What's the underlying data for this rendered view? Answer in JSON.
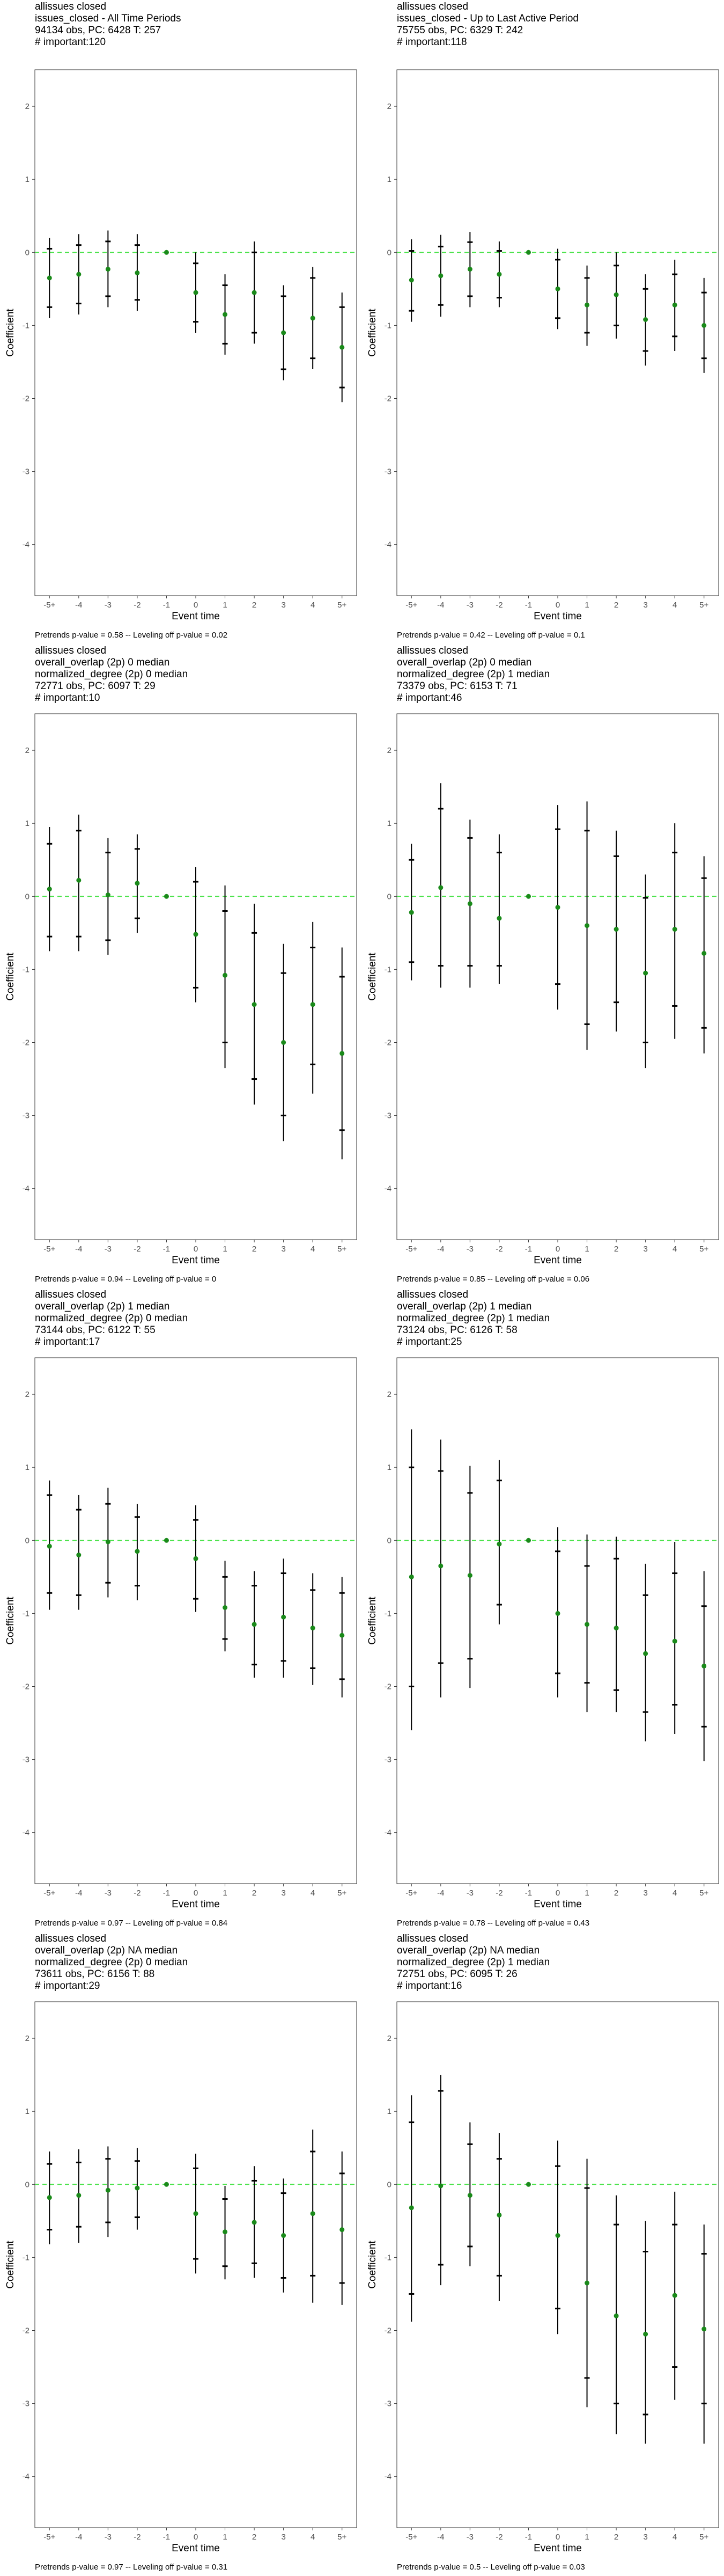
{
  "layout": {
    "columns": 2,
    "rows": 4
  },
  "styles": {
    "reference_line_color": "#4de34d",
    "point_color": "#1a8a1a",
    "ci_color": "#000000",
    "panel_border": "#333333"
  },
  "chart_data": [
    {
      "type": "scatter",
      "title_lines": [
        "allissues closed",
        "issues_closed - All Time Periods",
        "94134 obs, PC: 6428 T: 257",
        "# important:120"
      ],
      "xlabel": "Event time",
      "ylabel": "Coefficient",
      "categories": [
        "-5+",
        "-4",
        "-3",
        "-2",
        "-1",
        "0",
        "1",
        "2",
        "3",
        "4",
        "5+"
      ],
      "yticks": [
        2,
        1,
        0,
        -1,
        -2,
        -3,
        -4
      ],
      "ylim": [
        -4.7,
        2.5
      ],
      "reference_line_y": 0,
      "reference_category": "-1",
      "points": [
        -0.35,
        -0.3,
        -0.23,
        -0.28,
        0,
        -0.55,
        -0.85,
        -0.55,
        -1.1,
        -0.9,
        -1.3
      ],
      "ci_inner": [
        [
          -0.75,
          0.05
        ],
        [
          -0.7,
          0.1
        ],
        [
          -0.6,
          0.15
        ],
        [
          -0.65,
          0.1
        ],
        null,
        [
          -0.95,
          -0.15
        ],
        [
          -1.25,
          -0.45
        ],
        [
          -1.1,
          0.0
        ],
        [
          -1.6,
          -0.6
        ],
        [
          -1.45,
          -0.35
        ],
        [
          -1.85,
          -0.75
        ]
      ],
      "ci_outer": [
        [
          -0.9,
          0.2
        ],
        [
          -0.85,
          0.25
        ],
        [
          -0.75,
          0.3
        ],
        [
          -0.8,
          0.25
        ],
        null,
        [
          -1.1,
          0.0
        ],
        [
          -1.4,
          -0.3
        ],
        [
          -1.25,
          0.15
        ],
        [
          -1.75,
          -0.45
        ],
        [
          -1.6,
          -0.2
        ],
        [
          -2.05,
          -0.55
        ]
      ],
      "footer": "Pretrends p-value = 0.58 -- Leveling off p-value = 0.02"
    },
    {
      "type": "scatter",
      "title_lines": [
        "allissues closed",
        "issues_closed - Up to Last Active Period",
        "75755 obs, PC: 6329 T: 242",
        "# important:118"
      ],
      "xlabel": "Event time",
      "ylabel": "Coefficient",
      "categories": [
        "-5+",
        "-4",
        "-3",
        "-2",
        "-1",
        "0",
        "1",
        "2",
        "3",
        "4",
        "5+"
      ],
      "yticks": [
        2,
        1,
        0,
        -1,
        -2,
        -3,
        -4
      ],
      "ylim": [
        -4.7,
        2.5
      ],
      "reference_line_y": 0,
      "reference_category": "-1",
      "points": [
        -0.38,
        -0.32,
        -0.23,
        -0.3,
        0,
        -0.5,
        -0.72,
        -0.58,
        -0.92,
        -0.72,
        -1.0
      ],
      "ci_inner": [
        [
          -0.8,
          0.02
        ],
        [
          -0.72,
          0.08
        ],
        [
          -0.6,
          0.14
        ],
        [
          -0.62,
          0.02
        ],
        null,
        [
          -0.9,
          -0.1
        ],
        [
          -1.1,
          -0.35
        ],
        [
          -1.0,
          -0.18
        ],
        [
          -1.35,
          -0.5
        ],
        [
          -1.15,
          -0.3
        ],
        [
          -1.45,
          -0.55
        ]
      ],
      "ci_outer": [
        [
          -0.95,
          0.18
        ],
        [
          -0.88,
          0.24
        ],
        [
          -0.75,
          0.28
        ],
        [
          -0.75,
          0.15
        ],
        null,
        [
          -1.05,
          0.05
        ],
        [
          -1.28,
          -0.18
        ],
        [
          -1.18,
          0.0
        ],
        [
          -1.55,
          -0.3
        ],
        [
          -1.35,
          -0.1
        ],
        [
          -1.65,
          -0.35
        ]
      ],
      "footer": "Pretrends p-value = 0.42 -- Leveling off p-value = 0.1"
    },
    {
      "type": "scatter",
      "title_lines": [
        "allissues closed",
        "overall_overlap (2p) 0 median",
        "normalized_degree (2p) 0 median",
        "72771 obs, PC: 6097 T: 29",
        "# important:10"
      ],
      "xlabel": "Event time",
      "ylabel": "Coefficient",
      "categories": [
        "-5+",
        "-4",
        "-3",
        "-2",
        "-1",
        "0",
        "1",
        "2",
        "3",
        "4",
        "5+"
      ],
      "yticks": [
        2,
        1,
        0,
        -1,
        -2,
        -3,
        -4
      ],
      "ylim": [
        -4.7,
        2.5
      ],
      "reference_line_y": 0,
      "reference_category": "-1",
      "points": [
        0.1,
        0.22,
        0.02,
        0.18,
        0,
        -0.52,
        -1.08,
        -1.48,
        -2.0,
        -1.48,
        -2.15
      ],
      "ci_inner": [
        [
          -0.55,
          0.72
        ],
        [
          -0.55,
          0.9
        ],
        [
          -0.6,
          0.6
        ],
        [
          -0.3,
          0.65
        ],
        null,
        [
          -1.25,
          0.2
        ],
        [
          -2.0,
          -0.2
        ],
        [
          -2.5,
          -0.5
        ],
        [
          -3.0,
          -1.05
        ],
        [
          -2.3,
          -0.7
        ],
        [
          -3.2,
          -1.1
        ]
      ],
      "ci_outer": [
        [
          -0.75,
          0.95
        ],
        [
          -0.75,
          1.12
        ],
        [
          -0.8,
          0.8
        ],
        [
          -0.5,
          0.85
        ],
        null,
        [
          -1.45,
          0.4
        ],
        [
          -2.35,
          0.15
        ],
        [
          -2.85,
          -0.1
        ],
        [
          -3.35,
          -0.65
        ],
        [
          -2.7,
          -0.35
        ],
        [
          -3.6,
          -0.7
        ]
      ],
      "footer": "Pretrends p-value = 0.94 -- Leveling off p-value = 0"
    },
    {
      "type": "scatter",
      "title_lines": [
        "allissues closed",
        "overall_overlap (2p) 0 median",
        "normalized_degree (2p) 1 median",
        "73379 obs, PC: 6153 T: 71",
        "# important:46"
      ],
      "xlabel": "Event time",
      "ylabel": "Coefficient",
      "categories": [
        "-5+",
        "-4",
        "-3",
        "-2",
        "-1",
        "0",
        "1",
        "2",
        "3",
        "4",
        "5+"
      ],
      "yticks": [
        2,
        1,
        0,
        -1,
        -2,
        -3,
        -4
      ],
      "ylim": [
        -4.7,
        2.5
      ],
      "reference_line_y": 0,
      "reference_category": "-1",
      "points": [
        -0.22,
        0.12,
        -0.1,
        -0.3,
        0,
        -0.15,
        -0.4,
        -0.45,
        -1.05,
        -0.45,
        -0.78
      ],
      "ci_inner": [
        [
          -0.9,
          0.5
        ],
        [
          -0.95,
          1.2
        ],
        [
          -0.95,
          0.8
        ],
        [
          -0.95,
          0.6
        ],
        null,
        [
          -1.2,
          0.92
        ],
        [
          -1.75,
          0.9
        ],
        [
          -1.45,
          0.55
        ],
        [
          -2.0,
          -0.02
        ],
        [
          -1.5,
          0.6
        ],
        [
          -1.8,
          0.25
        ]
      ],
      "ci_outer": [
        [
          -1.15,
          0.72
        ],
        [
          -1.25,
          1.55
        ],
        [
          -1.25,
          1.05
        ],
        [
          -1.2,
          0.85
        ],
        null,
        [
          -1.55,
          1.25
        ],
        [
          -2.1,
          1.3
        ],
        [
          -1.85,
          0.9
        ],
        [
          -2.35,
          0.3
        ],
        [
          -1.95,
          1.0
        ],
        [
          -2.15,
          0.55
        ]
      ],
      "footer": "Pretrends p-value = 0.85 -- Leveling off p-value = 0.06"
    },
    {
      "type": "scatter",
      "title_lines": [
        "allissues closed",
        "overall_overlap (2p) 1 median",
        "normalized_degree (2p) 0 median",
        "73144 obs, PC: 6122 T: 55",
        "# important:17"
      ],
      "xlabel": "Event time",
      "ylabel": "Coefficient",
      "categories": [
        "-5+",
        "-4",
        "-3",
        "-2",
        "-1",
        "0",
        "1",
        "2",
        "3",
        "4",
        "5+"
      ],
      "yticks": [
        2,
        1,
        0,
        -1,
        -2,
        -3,
        -4
      ],
      "ylim": [
        -4.7,
        2.5
      ],
      "reference_line_y": 0,
      "reference_category": "-1",
      "points": [
        -0.08,
        -0.2,
        -0.02,
        -0.15,
        0,
        -0.25,
        -0.92,
        -1.15,
        -1.05,
        -1.2,
        -1.3
      ],
      "ci_inner": [
        [
          -0.72,
          0.62
        ],
        [
          -0.75,
          0.42
        ],
        [
          -0.58,
          0.5
        ],
        [
          -0.62,
          0.32
        ],
        null,
        [
          -0.8,
          0.28
        ],
        [
          -1.35,
          -0.5
        ],
        [
          -1.7,
          -0.62
        ],
        [
          -1.65,
          -0.45
        ],
        [
          -1.75,
          -0.68
        ],
        [
          -1.9,
          -0.72
        ]
      ],
      "ci_outer": [
        [
          -0.95,
          0.82
        ],
        [
          -0.95,
          0.62
        ],
        [
          -0.78,
          0.72
        ],
        [
          -0.82,
          0.5
        ],
        null,
        [
          -0.98,
          0.48
        ],
        [
          -1.52,
          -0.28
        ],
        [
          -1.88,
          -0.42
        ],
        [
          -1.88,
          -0.25
        ],
        [
          -1.98,
          -0.45
        ],
        [
          -2.15,
          -0.5
        ]
      ],
      "footer": "Pretrends p-value = 0.97 -- Leveling off p-value = 0.84"
    },
    {
      "type": "scatter",
      "title_lines": [
        "allissues closed",
        "overall_overlap (2p) 1 median",
        "normalized_degree (2p) 1 median",
        "73124 obs, PC: 6126 T: 58",
        "# important:25"
      ],
      "xlabel": "Event time",
      "ylabel": "Coefficient",
      "categories": [
        "-5+",
        "-4",
        "-3",
        "-2",
        "-1",
        "0",
        "1",
        "2",
        "3",
        "4",
        "5+"
      ],
      "yticks": [
        2,
        1,
        0,
        -1,
        -2,
        -3,
        -4
      ],
      "ylim": [
        -4.7,
        2.5
      ],
      "reference_line_y": 0,
      "reference_category": "-1",
      "points": [
        -0.5,
        -0.35,
        -0.48,
        -0.05,
        0,
        -1.0,
        -1.15,
        -1.2,
        -1.55,
        -1.38,
        -1.72
      ],
      "ci_inner": [
        [
          -2.0,
          1.0
        ],
        [
          -1.68,
          0.95
        ],
        [
          -1.62,
          0.65
        ],
        [
          -0.88,
          0.82
        ],
        null,
        [
          -1.82,
          -0.15
        ],
        [
          -1.95,
          -0.35
        ],
        [
          -2.05,
          -0.25
        ],
        [
          -2.35,
          -0.75
        ],
        [
          -2.25,
          -0.45
        ],
        [
          -2.55,
          -0.9
        ]
      ],
      "ci_outer": [
        [
          -2.6,
          1.52
        ],
        [
          -2.15,
          1.38
        ],
        [
          -2.02,
          1.02
        ],
        [
          -1.15,
          1.1
        ],
        null,
        [
          -2.15,
          0.18
        ],
        [
          -2.35,
          0.08
        ],
        [
          -2.35,
          0.05
        ],
        [
          -2.75,
          -0.32
        ],
        [
          -2.65,
          -0.02
        ],
        [
          -3.02,
          -0.42
        ]
      ],
      "footer": "Pretrends p-value = 0.78 -- Leveling off p-value = 0.43"
    },
    {
      "type": "scatter",
      "title_lines": [
        "allissues closed",
        "overall_overlap (2p) NA median",
        "normalized_degree (2p) 0 median",
        "73611 obs, PC: 6156 T: 88",
        "# important:29"
      ],
      "xlabel": "Event time",
      "ylabel": "Coefficient",
      "categories": [
        "-5+",
        "-4",
        "-3",
        "-2",
        "-1",
        "0",
        "1",
        "2",
        "3",
        "4",
        "5+"
      ],
      "yticks": [
        2,
        1,
        0,
        -1,
        -2,
        -3,
        -4
      ],
      "ylim": [
        -4.7,
        2.5
      ],
      "reference_line_y": 0,
      "reference_category": "-1",
      "points": [
        -0.18,
        -0.15,
        -0.08,
        -0.05,
        0,
        -0.4,
        -0.65,
        -0.52,
        -0.7,
        -0.4,
        -0.62
      ],
      "ci_inner": [
        [
          -0.62,
          0.28
        ],
        [
          -0.58,
          0.3
        ],
        [
          -0.52,
          0.35
        ],
        [
          -0.45,
          0.32
        ],
        null,
        [
          -1.02,
          0.22
        ],
        [
          -1.12,
          -0.2
        ],
        [
          -1.08,
          0.05
        ],
        [
          -1.28,
          -0.12
        ],
        [
          -1.25,
          0.45
        ],
        [
          -1.35,
          0.15
        ]
      ],
      "ci_outer": [
        [
          -0.82,
          0.45
        ],
        [
          -0.8,
          0.48
        ],
        [
          -0.72,
          0.52
        ],
        [
          -0.62,
          0.5
        ],
        null,
        [
          -1.22,
          0.42
        ],
        [
          -1.3,
          -0.02
        ],
        [
          -1.28,
          0.25
        ],
        [
          -1.48,
          0.08
        ],
        [
          -1.62,
          0.75
        ],
        [
          -1.65,
          0.45
        ]
      ],
      "footer": "Pretrends p-value = 0.97 -- Leveling off p-value = 0.31"
    },
    {
      "type": "scatter",
      "title_lines": [
        "allissues closed",
        "overall_overlap (2p) NA median",
        "normalized_degree (2p) 1 median",
        "72751 obs, PC: 6095 T: 26",
        "# important:16"
      ],
      "xlabel": "Event time",
      "ylabel": "Coefficient",
      "categories": [
        "-5+",
        "-4",
        "-3",
        "-2",
        "-1",
        "0",
        "1",
        "2",
        "3",
        "4",
        "5+"
      ],
      "yticks": [
        2,
        1,
        0,
        -1,
        -2,
        -3,
        -4
      ],
      "ylim": [
        -4.7,
        2.5
      ],
      "reference_line_y": 0,
      "reference_category": "-1",
      "points": [
        -0.32,
        -0.02,
        -0.15,
        -0.42,
        0,
        -0.7,
        -1.35,
        -1.8,
        -2.05,
        -1.52,
        -1.98
      ],
      "ci_inner": [
        [
          -1.5,
          0.85
        ],
        [
          -1.1,
          1.28
        ],
        [
          -0.85,
          0.55
        ],
        [
          -1.25,
          0.35
        ],
        null,
        [
          -1.7,
          0.25
        ],
        [
          -2.65,
          -0.05
        ],
        [
          -3.0,
          -0.55
        ],
        [
          -3.15,
          -0.92
        ],
        [
          -2.5,
          -0.55
        ],
        [
          -3.0,
          -0.95
        ]
      ],
      "ci_outer": [
        [
          -1.88,
          1.22
        ],
        [
          -1.38,
          1.5
        ],
        [
          -1.12,
          0.85
        ],
        [
          -1.6,
          0.7
        ],
        null,
        [
          -2.05,
          0.6
        ],
        [
          -3.05,
          0.35
        ],
        [
          -3.42,
          -0.15
        ],
        [
          -3.55,
          -0.5
        ],
        [
          -2.95,
          -0.1
        ],
        [
          -3.55,
          -0.55
        ]
      ],
      "footer": "Pretrends p-value = 0.5 -- Leveling off p-value = 0.03"
    }
  ]
}
